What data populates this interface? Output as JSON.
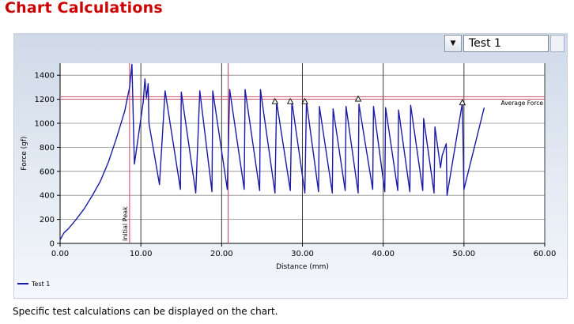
{
  "page": {
    "title": "Chart Calculations",
    "caption": "Specific test calculations can be displayed on the chart."
  },
  "selector": {
    "value": "Test 1",
    "dropdown_icon": "triangle-down-icon"
  },
  "colors": {
    "title": "#cc0000",
    "series": "#1a1aa8",
    "marker_line": "#d04060",
    "average_line": "#d04060",
    "grid": "#555555"
  },
  "chart_data": {
    "type": "line",
    "xlabel": "Distance (mm)",
    "ylabel": "Force (gf)",
    "xlim": [
      0,
      60
    ],
    "ylim": [
      0,
      1500
    ],
    "x_ticks": [
      0,
      10,
      20,
      30,
      40,
      50,
      60
    ],
    "x_tick_labels": [
      "0.00",
      "10.00",
      "20.00",
      "30.00",
      "40.00",
      "50.00",
      "60.00"
    ],
    "y_ticks": [
      0,
      200,
      400,
      600,
      800,
      1000,
      1200,
      1400
    ],
    "y_tick_labels": [
      "0",
      "200",
      "400",
      "600",
      "800",
      "1000",
      "1200",
      "1400"
    ],
    "grid": true,
    "legend_position": "bottom-left",
    "series": [
      {
        "name": "Test 1",
        "x": [
          0,
          0.5,
          1,
          2,
          3,
          4,
          5,
          6,
          7,
          8,
          8.6,
          8.9,
          9.2,
          10.3,
          10.5,
          10.7,
          10.9,
          11.0,
          12.3,
          13.0,
          14.9,
          15.0,
          16.8,
          17.3,
          18.8,
          18.9,
          20.7,
          21.0,
          22.8,
          22.9,
          24.7,
          24.8,
          26.6,
          26.8,
          28.5,
          28.7,
          30.3,
          30.5,
          32.0,
          32.1,
          33.7,
          33.8,
          35.3,
          35.4,
          36.9,
          37.0,
          38.7,
          38.8,
          40.2,
          40.3,
          41.8,
          41.9,
          43.3,
          43.4,
          44.9,
          45.0,
          46.3,
          46.4,
          47.1,
          47.3,
          47.8,
          47.9,
          49.8,
          50.0,
          52.5
        ],
        "y": [
          30,
          90,
          120,
          200,
          290,
          400,
          520,
          680,
          880,
          1100,
          1300,
          1490,
          660,
          1180,
          1370,
          1210,
          1330,
          1000,
          490,
          1270,
          450,
          1260,
          420,
          1270,
          430,
          1270,
          450,
          1280,
          450,
          1280,
          440,
          1280,
          420,
          1180,
          440,
          1180,
          420,
          1180,
          430,
          1140,
          420,
          1120,
          440,
          1140,
          420,
          1160,
          450,
          1140,
          430,
          1130,
          440,
          1110,
          430,
          1150,
          440,
          1040,
          420,
          970,
          630,
          730,
          830,
          400,
          1170,
          450,
          1130
        ]
      }
    ],
    "annotations": [
      {
        "type": "vline",
        "x": 8.6,
        "label": "Initial Peak"
      },
      {
        "type": "vline",
        "x": 20.8,
        "label": ""
      },
      {
        "type": "hline",
        "y": 1210,
        "label": "Average Force"
      },
      {
        "type": "markers",
        "shape": "triangle",
        "x": [
          26.6,
          28.5,
          30.3,
          36.9,
          49.8
        ],
        "y": [
          1180,
          1180,
          1180,
          1200,
          1170
        ]
      }
    ]
  }
}
